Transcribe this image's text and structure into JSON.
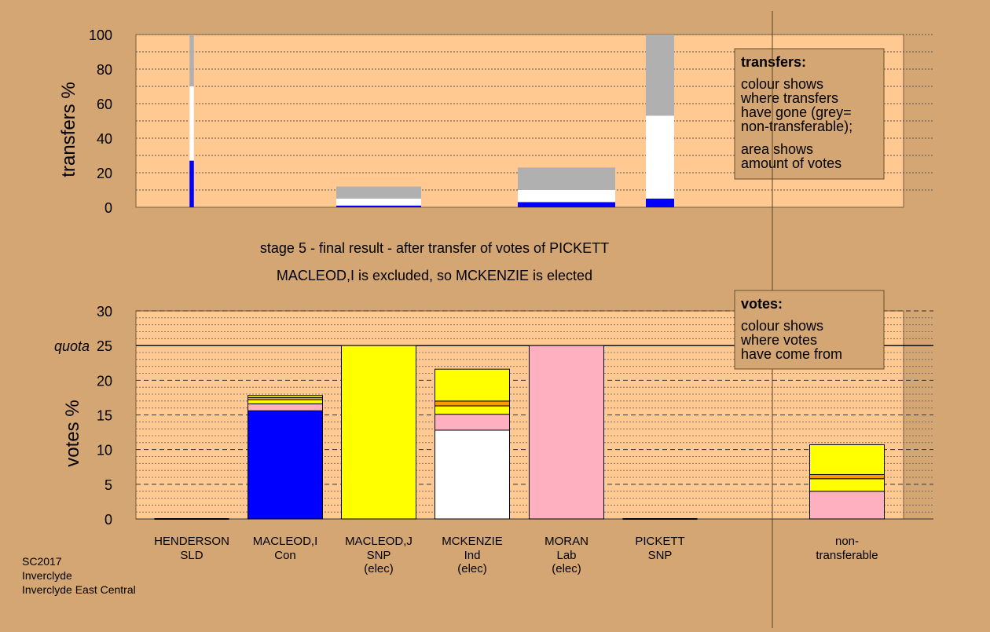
{
  "chart_data": [
    {
      "type": "bar",
      "stacked": true,
      "ylabel": "transfers %",
      "ylim": [
        0,
        100
      ],
      "yticks": [
        0,
        20,
        40,
        60,
        80,
        100
      ],
      "grid": true,
      "legend_box": {
        "title": "transfers:",
        "lines1": [
          "colour shows",
          "where transfers",
          "have gone (grey=",
          "non-transferable);"
        ],
        "lines2": [
          "area shows",
          "amount of votes"
        ]
      },
      "bars": [
        {
          "candidate": "HENDERSON",
          "width_share": 0.05,
          "segments": [
            {
              "value": 27,
              "color": "#0000ff"
            },
            {
              "value": 43,
              "color": "#ffffff"
            },
            {
              "value": 30,
              "color": "#b0b0b0"
            }
          ]
        },
        {
          "candidate": "MACLEOD,J",
          "width_share": 0.9,
          "segments": [
            {
              "value": 1,
              "color": "#0000ff"
            },
            {
              "value": 4,
              "color": "#ffffff"
            },
            {
              "value": 7,
              "color": "#b0b0b0"
            }
          ]
        },
        {
          "candidate": "MCKENZIE",
          "width_share": 1.0,
          "segments": [
            {
              "value": 3,
              "color": "#0000ff"
            },
            {
              "value": 7,
              "color": "#ffffff"
            },
            {
              "value": 13,
              "color": "#b0b0b0"
            }
          ]
        },
        {
          "candidate": "PICKETT",
          "width_share": 0.3,
          "segments": [
            {
              "value": 5,
              "color": "#0000ff"
            },
            {
              "value": 48,
              "color": "#ffffff"
            },
            {
              "value": 47,
              "color": "#b0b0b0"
            }
          ]
        }
      ]
    },
    {
      "type": "bar",
      "stacked": true,
      "title": "stage 5 - final result - after transfer of votes of PICKETT",
      "subtitle": "MACLEOD,I is excluded, so MCKENZIE is elected",
      "ylabel": "votes %",
      "ylim": [
        0,
        30
      ],
      "yticks": [
        0,
        5,
        10,
        15,
        20,
        25,
        30
      ],
      "quota": {
        "label": "quota",
        "value": 25
      },
      "grid": true,
      "legend_box": {
        "title": "votes:",
        "lines1": [
          "colour shows",
          "where votes",
          "have come from"
        ]
      },
      "categories": [
        {
          "name": "HENDERSON",
          "party": "SLD",
          "status": ""
        },
        {
          "name": "MACLEOD,I",
          "party": "Con",
          "status": ""
        },
        {
          "name": "MACLEOD,J",
          "party": "SNP",
          "status": "(elec)"
        },
        {
          "name": "MCKENZIE",
          "party": "Ind",
          "status": "(elec)"
        },
        {
          "name": "MORAN",
          "party": "Lab",
          "status": "(elec)"
        },
        {
          "name": "PICKETT",
          "party": "SNP",
          "status": ""
        },
        {
          "name": "non-",
          "party": "transferable",
          "status": ""
        }
      ],
      "stacks": [
        [],
        [
          {
            "value": 15.6,
            "color": "#0000ff"
          },
          {
            "value": 1.0,
            "color": "#ffb0c0"
          },
          {
            "value": 0.6,
            "color": "#ffff00"
          },
          {
            "value": 0.3,
            "color": "#ff9900"
          },
          {
            "value": 0.3,
            "color": "#ffff00"
          }
        ],
        [
          {
            "value": 25.0,
            "color": "#ffff00"
          }
        ],
        [
          {
            "value": 12.8,
            "color": "#ffffff"
          },
          {
            "value": 2.3,
            "color": "#ffb0c0"
          },
          {
            "value": 1.2,
            "color": "#ffff00"
          },
          {
            "value": 0.7,
            "color": "#ff9900"
          },
          {
            "value": 4.6,
            "color": "#ffff00"
          }
        ],
        [
          {
            "value": 25.0,
            "color": "#ffb0c0"
          }
        ],
        [],
        [
          {
            "value": 4.0,
            "color": "#ffb0c0"
          },
          {
            "value": 1.8,
            "color": "#ffff00"
          },
          {
            "value": 0.6,
            "color": "#ff9900"
          },
          {
            "value": 4.3,
            "color": "#ffff00"
          }
        ]
      ]
    }
  ],
  "footer": {
    "line1": "SC2017",
    "line2": "Inverclyde",
    "line3": "Inverclyde East Central"
  }
}
